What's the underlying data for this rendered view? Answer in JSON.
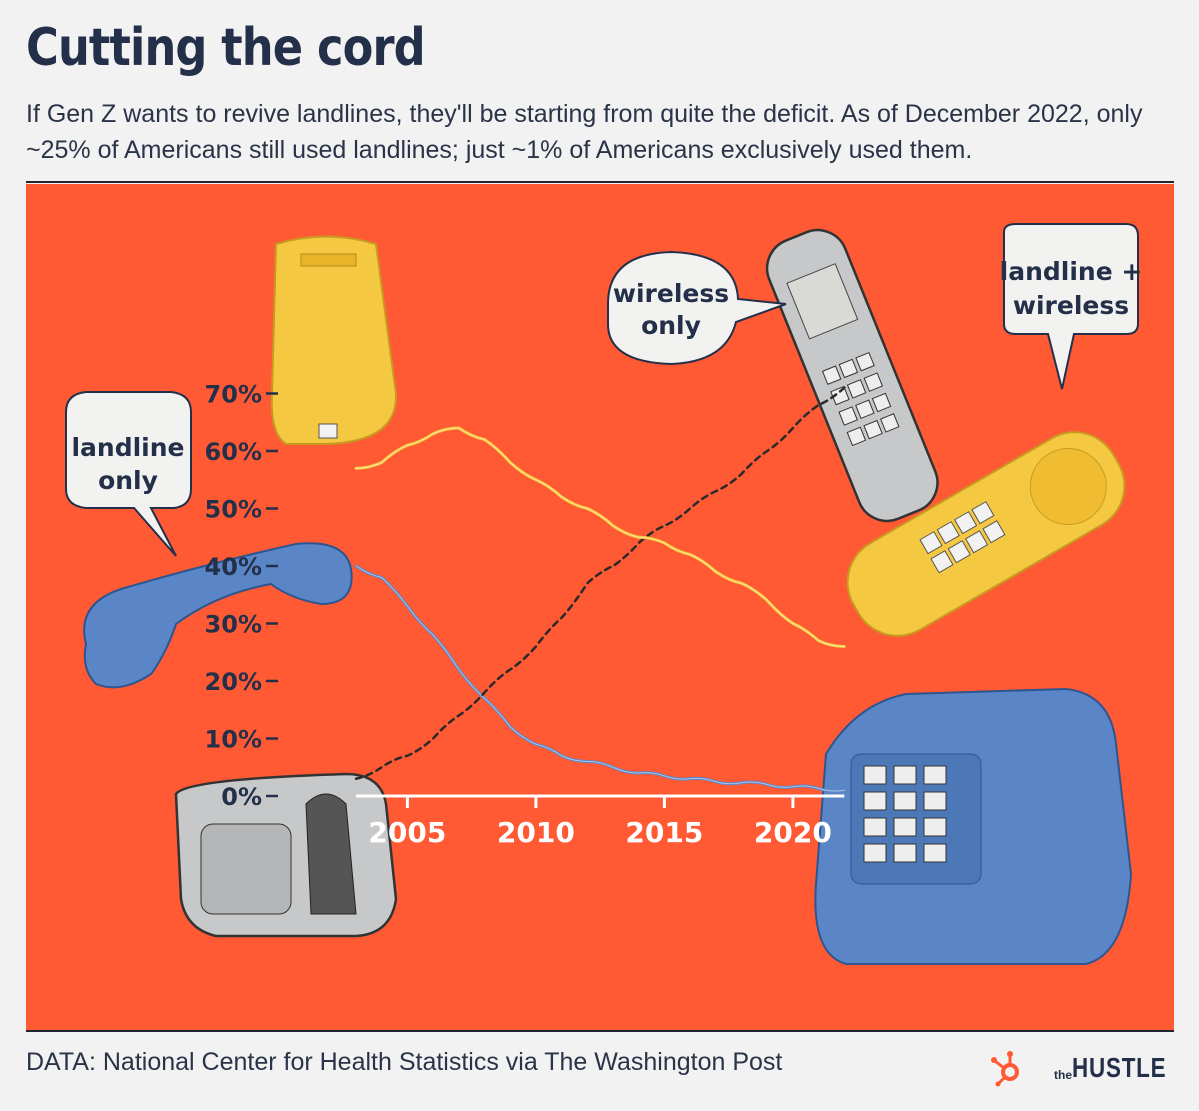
{
  "header": {
    "title": "Cutting the cord",
    "subtitle": "If Gen Z wants to revive landlines, they'll be starting from quite the deficit. As of December 2022, only ~25% of Americans still used landlines; just ~1% of Americans exclusively used them."
  },
  "footer": {
    "source": "DATA: National Center for Health Statistics via The Washington Post",
    "brand_the": "the",
    "brand_name": "HUSTLE",
    "brand_logo": "hubspot-sprocket-icon"
  },
  "colors": {
    "background": "#f1f2f1",
    "panel": "#ff5a34",
    "text": "#24304a",
    "landline_only": "#5a86c8",
    "wireless_only": "#2a2a2a",
    "landline_plus_wireless": "#f7c83a"
  },
  "chart_data": {
    "type": "line",
    "title": "",
    "xlabel": "",
    "ylabel": "",
    "x_ticks": [
      "2005",
      "2010",
      "2015",
      "2020"
    ],
    "y_ticks": [
      "0%",
      "10%",
      "20%",
      "30%",
      "40%",
      "50%",
      "60%",
      "70%"
    ],
    "xlim": [
      2003,
      2022
    ],
    "ylim": [
      0,
      70
    ],
    "grid": false,
    "legend": "speech bubbles next to phones",
    "series": [
      {
        "name": "landline only",
        "style": "solid",
        "color": "#5a86c8",
        "x": [
          2003,
          2004,
          2005,
          2006,
          2007,
          2008,
          2009,
          2010,
          2011,
          2012,
          2013,
          2014,
          2015,
          2016,
          2017,
          2018,
          2019,
          2020,
          2021,
          2022
        ],
        "y": [
          40,
          38,
          33,
          28,
          22,
          17,
          12,
          9,
          7,
          6,
          5,
          4,
          3.5,
          3,
          2.5,
          2.3,
          2,
          1.6,
          1.3,
          1
        ]
      },
      {
        "name": "wireless only",
        "style": "dashed",
        "color": "#2a2a2a",
        "x": [
          2003,
          2004,
          2005,
          2006,
          2007,
          2008,
          2009,
          2010,
          2011,
          2012,
          2013,
          2014,
          2015,
          2016,
          2017,
          2018,
          2019,
          2020,
          2021,
          2022
        ],
        "y": [
          3,
          5,
          7,
          10,
          14,
          18,
          22,
          26,
          31,
          37,
          40,
          44,
          47,
          50,
          53,
          56,
          60,
          64,
          68,
          71
        ]
      },
      {
        "name": "landline + wireless",
        "style": "solid",
        "color": "#f7c83a",
        "x": [
          2003,
          2004,
          2005,
          2006,
          2007,
          2008,
          2009,
          2010,
          2011,
          2012,
          2013,
          2014,
          2015,
          2016,
          2017,
          2018,
          2019,
          2020,
          2021,
          2022
        ],
        "y": [
          57,
          58,
          61,
          63,
          64,
          62,
          58,
          55,
          52,
          50,
          47,
          45,
          44,
          42,
          39,
          37,
          34,
          30,
          27,
          26
        ]
      }
    ],
    "bubbles": [
      {
        "label_lines": [
          "landline",
          "only"
        ]
      },
      {
        "label_lines": [
          "wireless",
          "only"
        ]
      },
      {
        "label_lines": [
          "landline +",
          "wireless"
        ]
      }
    ]
  }
}
